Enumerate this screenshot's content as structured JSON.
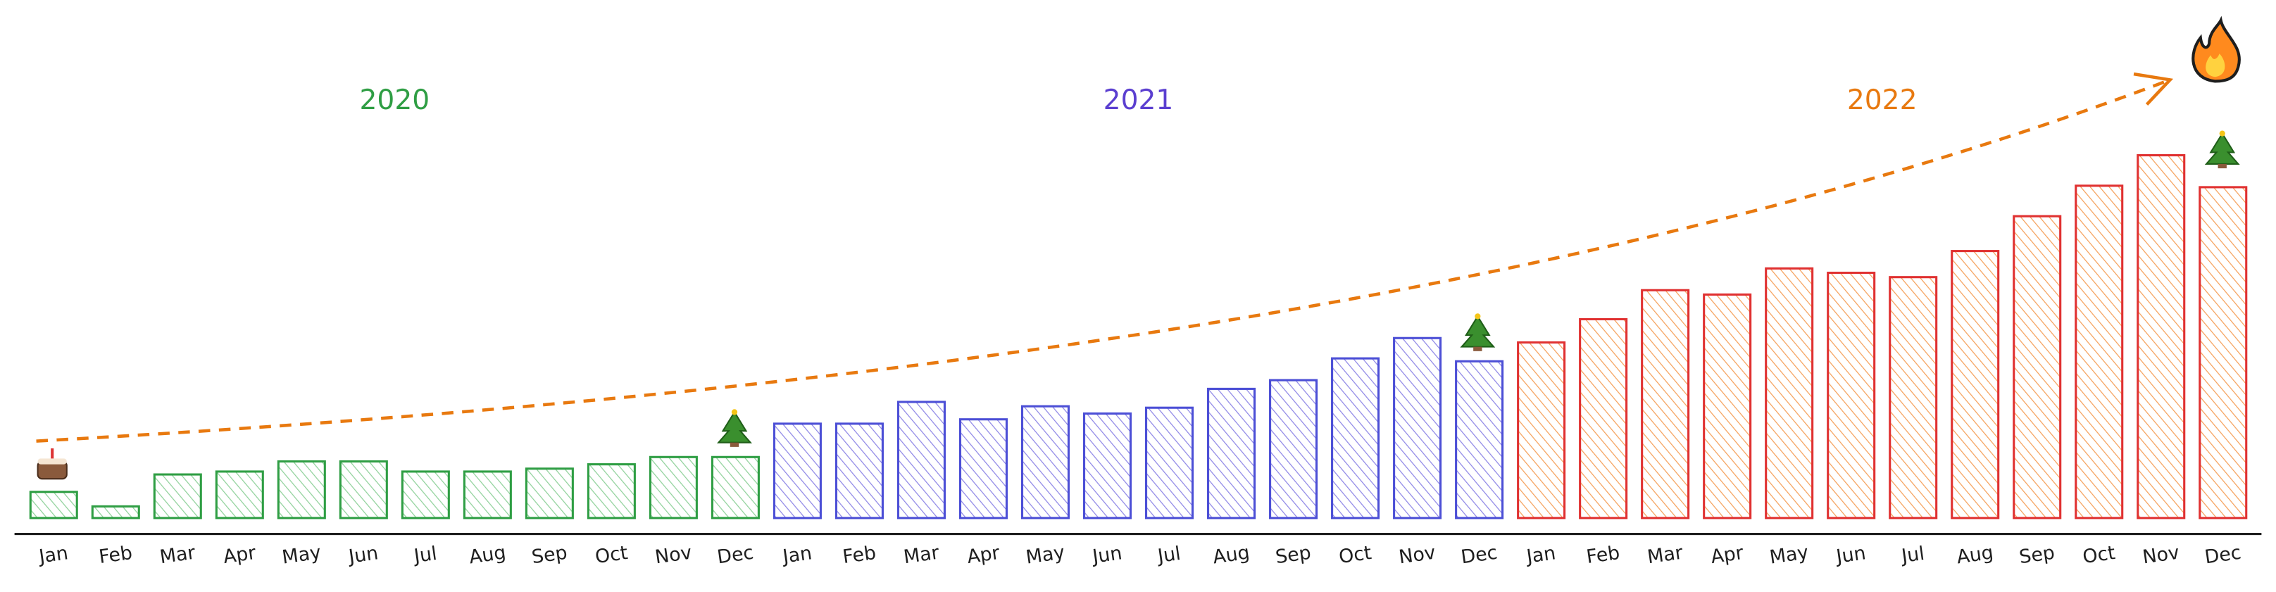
{
  "chart_data": {
    "type": "bar",
    "categories": [
      "Jan",
      "Feb",
      "Mar",
      "Apr",
      "May",
      "Jun",
      "Jul",
      "Aug",
      "Sep",
      "Oct",
      "Nov",
      "Dec"
    ],
    "series": [
      {
        "name": "2020",
        "color": "#2f9e44",
        "hatch_color": "#8fd19a",
        "values": [
          18,
          8,
          30,
          32,
          39,
          39,
          32,
          32,
          34,
          37,
          42,
          42
        ]
      },
      {
        "name": "2021",
        "color": "#4c4fd6",
        "hatch_color": "#8e86e6",
        "values": [
          65,
          65,
          80,
          68,
          77,
          72,
          76,
          89,
          95,
          110,
          124,
          108
        ]
      },
      {
        "name": "2022",
        "color": "#e03131",
        "hatch_color": "#f5a05a",
        "values": [
          121,
          137,
          157,
          154,
          172,
          169,
          166,
          184,
          208,
          229,
          250,
          228
        ]
      }
    ],
    "label_colors": [
      "#2f9e44",
      "#5b3fd0",
      "#e8790f"
    ],
    "trend_color": "#e8790f",
    "ylim": [
      0,
      250
    ]
  }
}
